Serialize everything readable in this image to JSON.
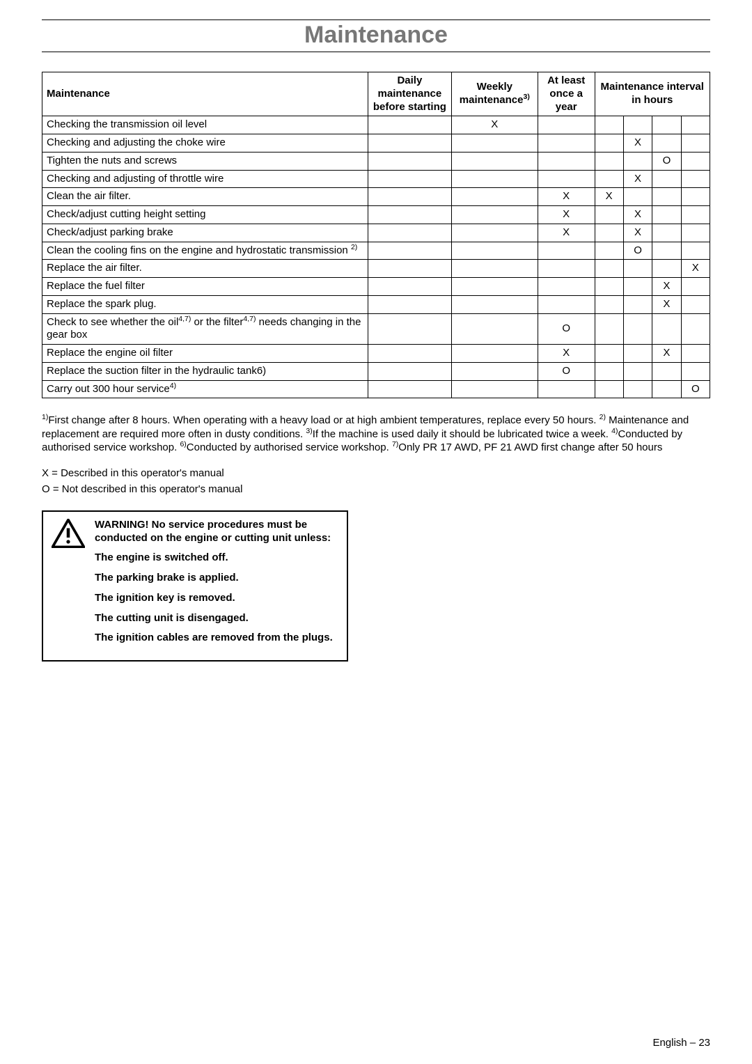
{
  "title": "Maintenance",
  "header": {
    "maintenance": "Maintenance",
    "daily": "Daily maintenance before starting",
    "weekly_pre": "Weekly maintenance",
    "weekly_sup": "3)",
    "year": "At least once a year",
    "interval": "Maintenance interval in hours"
  },
  "rows": [
    {
      "label": "Checking the transmission oil level",
      "daily": "",
      "weekly": "X",
      "year": "",
      "h1": "",
      "h2": "",
      "h3": "",
      "h4": ""
    },
    {
      "label": "Checking and adjusting the choke wire",
      "daily": "",
      "weekly": "",
      "year": "",
      "h1": "",
      "h2": "X",
      "h3": "",
      "h4": ""
    },
    {
      "label": "Tighten the nuts and screws",
      "daily": "",
      "weekly": "",
      "year": "",
      "h1": "",
      "h2": "",
      "h3": "O",
      "h4": ""
    },
    {
      "label": "Checking and adjusting of throttle wire",
      "daily": "",
      "weekly": "",
      "year": "",
      "h1": "",
      "h2": "X",
      "h3": "",
      "h4": ""
    },
    {
      "label": "Clean the air filter.",
      "daily": "",
      "weekly": "",
      "year": "X",
      "h1": "X",
      "h2": "",
      "h3": "",
      "h4": ""
    },
    {
      "label": "Check/adjust cutting height setting",
      "daily": "",
      "weekly": "",
      "year": "X",
      "h1": "",
      "h2": "X",
      "h3": "",
      "h4": ""
    },
    {
      "label": "Check/adjust parking brake",
      "daily": "",
      "weekly": "",
      "year": "X",
      "h1": "",
      "h2": "X",
      "h3": "",
      "h4": ""
    },
    {
      "label": "Clean the cooling fins on the engine and hydrostatic transmission ",
      "sup": "2)",
      "daily": "",
      "weekly": "",
      "year": "",
      "h1": "",
      "h2": "O",
      "h3": "",
      "h4": ""
    },
    {
      "label": "Replace the air filter.",
      "daily": "",
      "weekly": "",
      "year": "",
      "h1": "",
      "h2": "",
      "h3": "",
      "h4": "X"
    },
    {
      "label": "Replace the fuel filter",
      "daily": "",
      "weekly": "",
      "year": "",
      "h1": "",
      "h2": "",
      "h3": "X",
      "h4": ""
    },
    {
      "label": "Replace the spark plug.",
      "daily": "",
      "weekly": "",
      "year": "",
      "h1": "",
      "h2": "",
      "h3": "X",
      "h4": ""
    },
    {
      "label_html": "Check to see whether the oil<sup>4,7)</sup> or the filter<sup>4,7)</sup> needs changing in the gear box",
      "daily": "",
      "weekly": "",
      "year": "O",
      "h1": "",
      "h2": "",
      "h3": "",
      "h4": ""
    },
    {
      "label": "Replace the engine oil filter",
      "daily": "",
      "weekly": "",
      "year": "X",
      "h1": "",
      "h2": "",
      "h3": "X",
      "h4": ""
    },
    {
      "label": "Replace the suction filter in the hydraulic tank6)",
      "daily": "",
      "weekly": "",
      "year": "O",
      "h1": "",
      "h2": "",
      "h3": "",
      "h4": ""
    },
    {
      "label": "Carry out 300 hour service",
      "sup": "4)",
      "daily": "",
      "weekly": "",
      "year": "",
      "h1": "",
      "h2": "",
      "h3": "",
      "h4": "O"
    }
  ],
  "footnotes_html": "<sup>1)</sup>First change after 8 hours. When operating with a heavy load or at high ambient temperatures, replace every 50 hours. <sup>2)</sup> Maintenance and replacement are required more often in dusty conditions. <sup>3)</sup>If the machine is used daily it should be lubricated twice a week. <sup>4)</sup>Conducted by authorised service workshop. <sup>6)</sup>Conducted by authorised service workshop. <sup>7)</sup>Only PR 17 AWD, PF 21 AWD first change after 50 hours",
  "legend": {
    "x": "X = Described in this operator's manual",
    "o": "O = Not described in this operator's manual"
  },
  "warning": {
    "l1": "WARNING! No service procedures must be conducted on the engine or cutting unit unless:",
    "l2": "The engine is switched off.",
    "l3": "The parking brake is applied.",
    "l4": "The ignition key is removed.",
    "l5": "The cutting unit is disengaged.",
    "l6": "The ignition cables are removed from the plugs."
  },
  "pagenum_pre": "English – ",
  "pagenum": "23"
}
